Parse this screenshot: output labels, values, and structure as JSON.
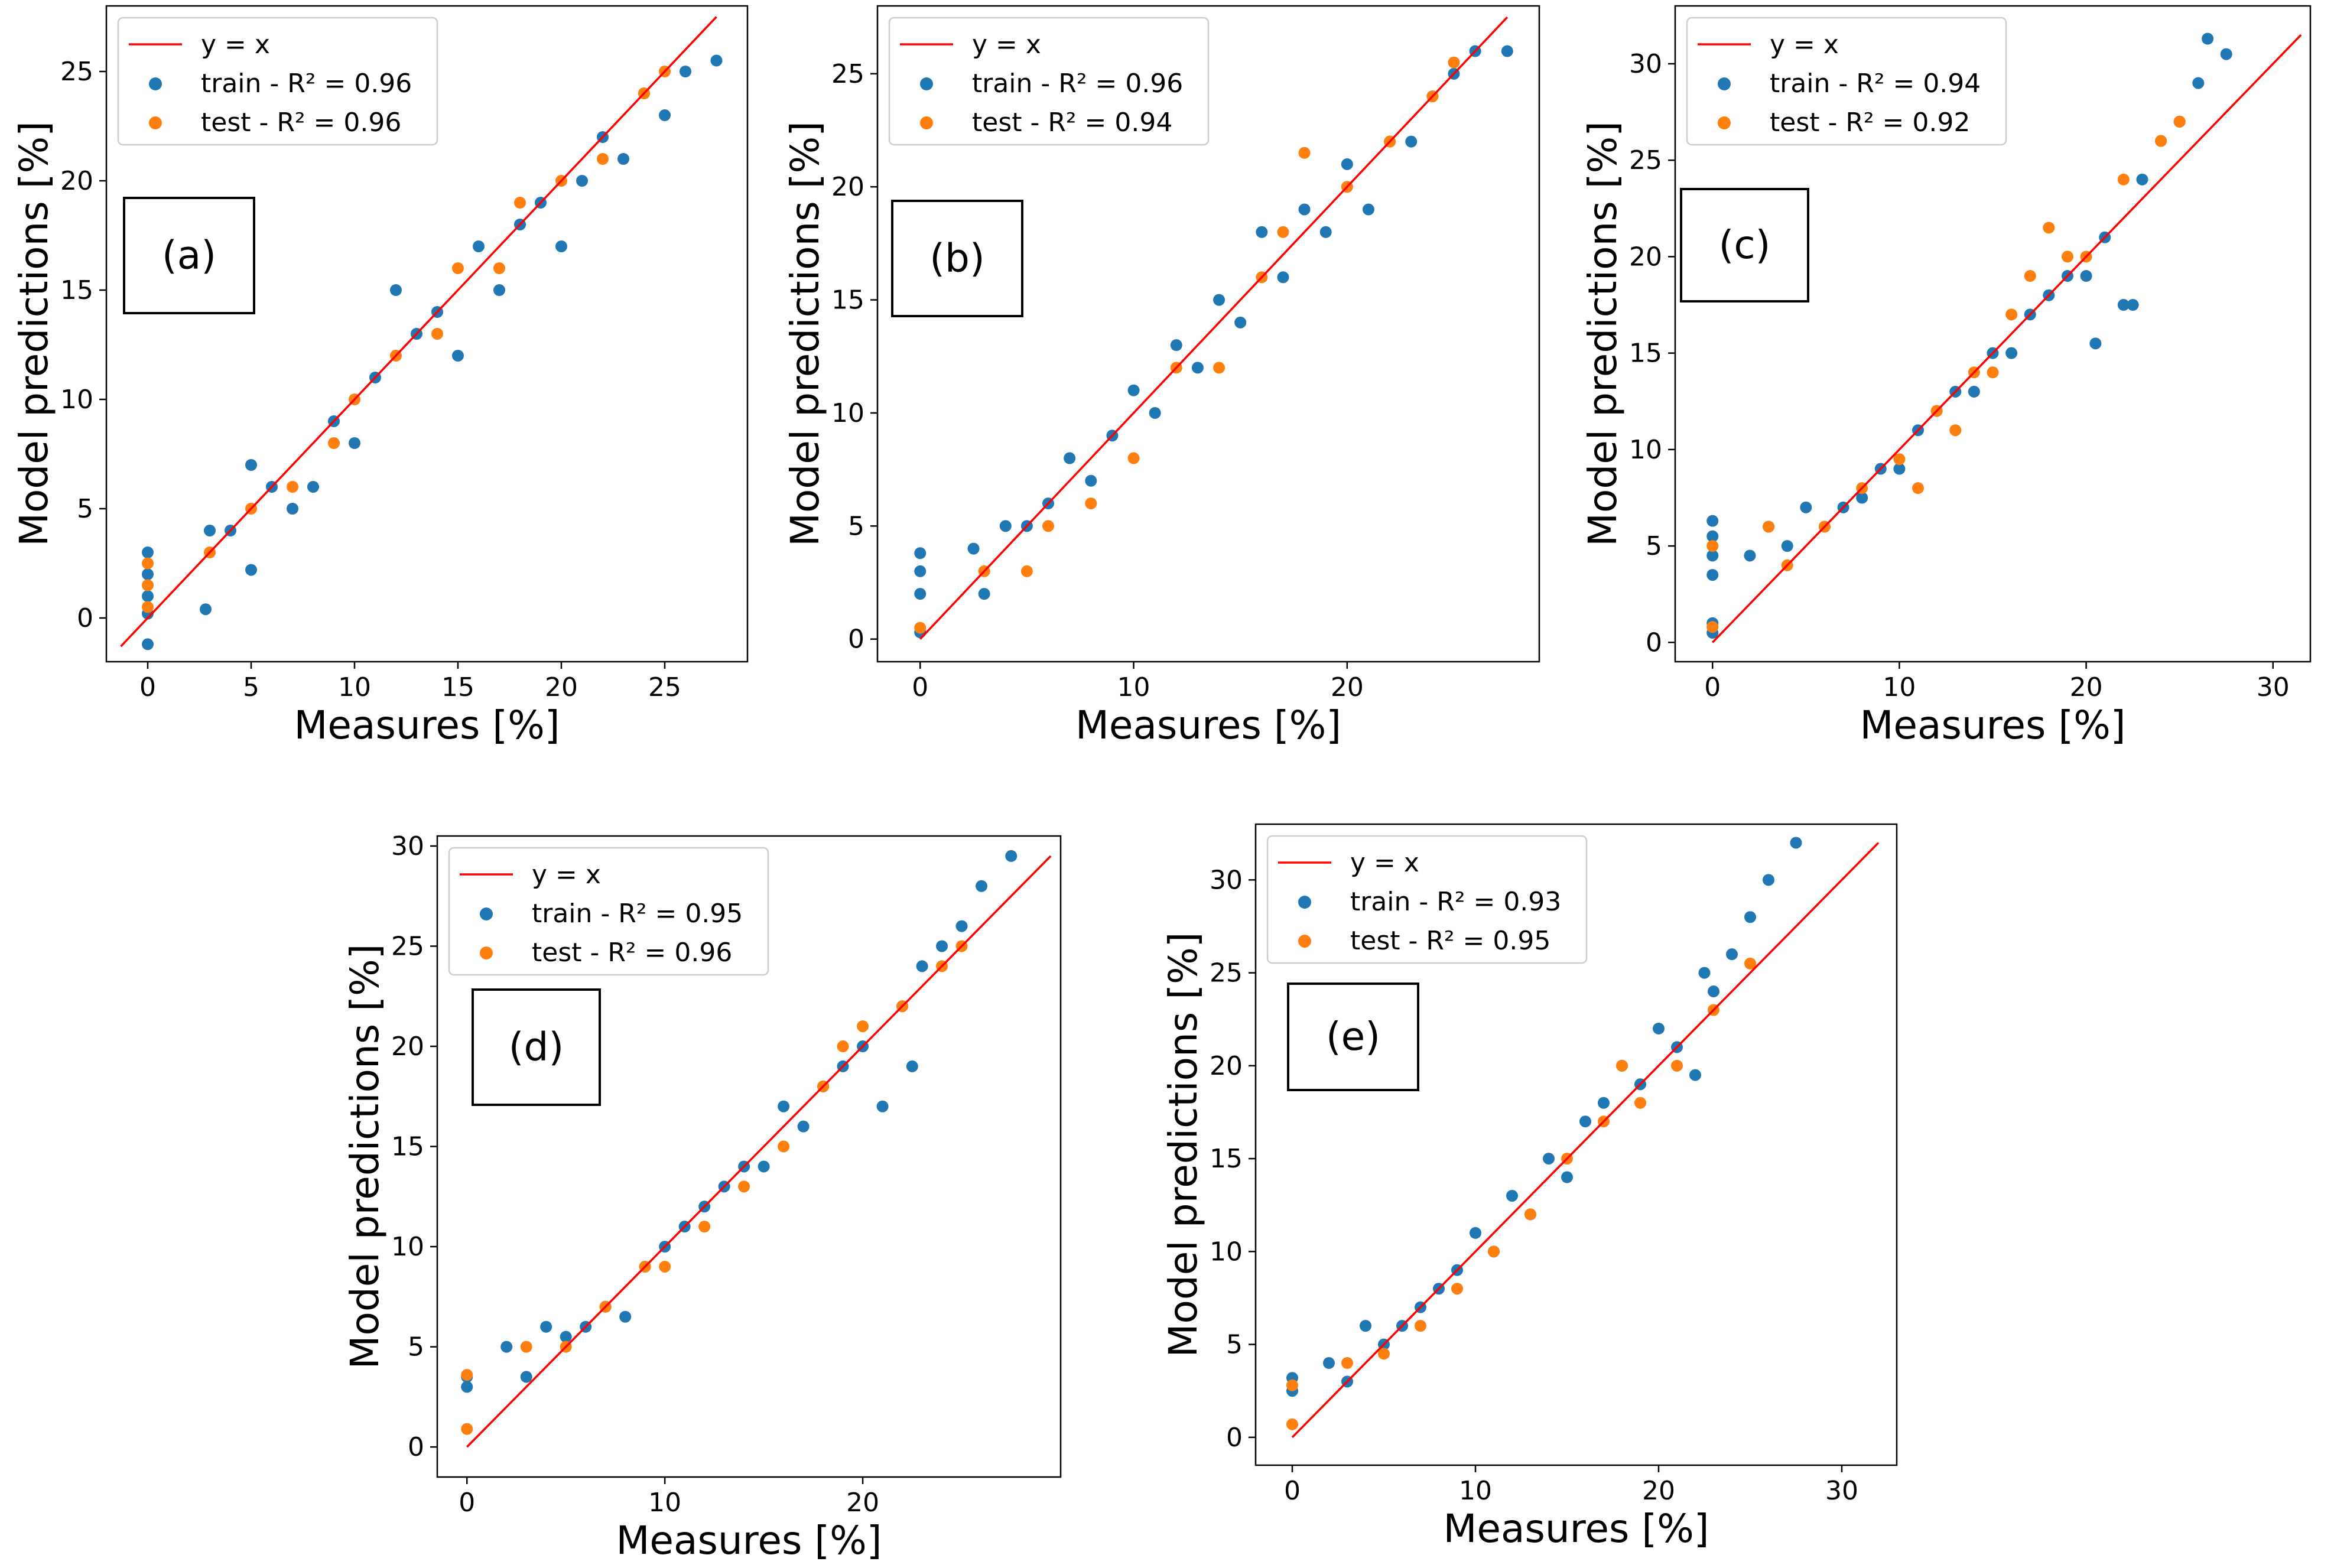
{
  "colors": {
    "train": "#1f77b4",
    "test": "#ff7f0e",
    "identity": "#ff0000"
  },
  "chart_data": [
    {
      "type": "scatter",
      "panel_label": "(a)",
      "xlabel": "Measures [%]",
      "ylabel": "Model predictions [%]",
      "xlim": [
        -2,
        29
      ],
      "ylim": [
        -2,
        28
      ],
      "xticks": [
        0,
        5,
        10,
        15,
        20,
        25
      ],
      "yticks": [
        0,
        5,
        10,
        15,
        20,
        25
      ],
      "legend": [
        "y = x",
        "train - R² = 0.96",
        "test - R² = 0.96"
      ],
      "legend_position": "top-left",
      "train_r2": 0.96,
      "test_r2": 0.96,
      "identity_range": [
        -1.3,
        27.5
      ],
      "series": [
        {
          "name": "train - R² = 0.96",
          "points": [
            [
              0,
              -1.2
            ],
            [
              0,
              0.2
            ],
            [
              0,
              1
            ],
            [
              0,
              2
            ],
            [
              0,
              3
            ],
            [
              2.8,
              0.4
            ],
            [
              3,
              4
            ],
            [
              4,
              4
            ],
            [
              5,
              2.2
            ],
            [
              5,
              7
            ],
            [
              6,
              6
            ],
            [
              7,
              5
            ],
            [
              8,
              6
            ],
            [
              9,
              9
            ],
            [
              10,
              8
            ],
            [
              11,
              11
            ],
            [
              12,
              15
            ],
            [
              13,
              13
            ],
            [
              14,
              14
            ],
            [
              15,
              12
            ],
            [
              16,
              17
            ],
            [
              17,
              15
            ],
            [
              18,
              18
            ],
            [
              19,
              19
            ],
            [
              20,
              17
            ],
            [
              21,
              20
            ],
            [
              22,
              22
            ],
            [
              23,
              21
            ],
            [
              24,
              24
            ],
            [
              25,
              23
            ],
            [
              26,
              25
            ],
            [
              27.5,
              25.5
            ]
          ]
        },
        {
          "name": "test - R² = 0.96",
          "points": [
            [
              0,
              0.5
            ],
            [
              0,
              1.5
            ],
            [
              0,
              2.5
            ],
            [
              3,
              3
            ],
            [
              5,
              5
            ],
            [
              7,
              6
            ],
            [
              9,
              8
            ],
            [
              10,
              10
            ],
            [
              12,
              12
            ],
            [
              14,
              13
            ],
            [
              15,
              16
            ],
            [
              17,
              16
            ],
            [
              18,
              19
            ],
            [
              20,
              20
            ],
            [
              22,
              21
            ],
            [
              24,
              24
            ],
            [
              25,
              25
            ]
          ]
        }
      ]
    },
    {
      "type": "scatter",
      "panel_label": "(b)",
      "xlabel": "Measures [%]",
      "ylabel": "Model predictions [%]",
      "xlim": [
        -2,
        29
      ],
      "ylim": [
        -1,
        28
      ],
      "xticks": [
        0,
        10,
        20
      ],
      "yticks": [
        0,
        5,
        10,
        15,
        20,
        25
      ],
      "legend": [
        "y = x",
        "train - R² = 0.96",
        "test - R² = 0.94"
      ],
      "legend_position": "top-left",
      "train_r2": 0.96,
      "test_r2": 0.94,
      "identity_range": [
        0,
        27.5
      ],
      "series": [
        {
          "name": "train - R² = 0.96",
          "points": [
            [
              0,
              0.3
            ],
            [
              0,
              2
            ],
            [
              0,
              3
            ],
            [
              0,
              3.8
            ],
            [
              2.5,
              4
            ],
            [
              3,
              2
            ],
            [
              4,
              5
            ],
            [
              5,
              5
            ],
            [
              6,
              6
            ],
            [
              7,
              8
            ],
            [
              8,
              7
            ],
            [
              9,
              9
            ],
            [
              10,
              11
            ],
            [
              11,
              10
            ],
            [
              12,
              13
            ],
            [
              13,
              12
            ],
            [
              14,
              15
            ],
            [
              15,
              14
            ],
            [
              16,
              18
            ],
            [
              17,
              16
            ],
            [
              18,
              19
            ],
            [
              19,
              18
            ],
            [
              20,
              21
            ],
            [
              21,
              19
            ],
            [
              22,
              22
            ],
            [
              23,
              22
            ],
            [
              24,
              24
            ],
            [
              25,
              25
            ],
            [
              26,
              26
            ],
            [
              27.5,
              26
            ]
          ]
        },
        {
          "name": "test - R² = 0.94",
          "points": [
            [
              0,
              0.5
            ],
            [
              3,
              3
            ],
            [
              5,
              3
            ],
            [
              6,
              5
            ],
            [
              8,
              6
            ],
            [
              10,
              8
            ],
            [
              12,
              12
            ],
            [
              14,
              12
            ],
            [
              16,
              16
            ],
            [
              17,
              18
            ],
            [
              18,
              21.5
            ],
            [
              20,
              20
            ],
            [
              22,
              22
            ],
            [
              24,
              24
            ],
            [
              25,
              25.5
            ]
          ]
        }
      ]
    },
    {
      "type": "scatter",
      "panel_label": "(c)",
      "xlabel": "Measures [%]",
      "ylabel": "Model predictions [%]",
      "xlim": [
        -2,
        32
      ],
      "ylim": [
        -1,
        33
      ],
      "xticks": [
        0,
        10,
        20,
        30
      ],
      "yticks": [
        0,
        5,
        10,
        15,
        20,
        25,
        30
      ],
      "legend": [
        "y = x",
        "train - R² = 0.94",
        "test - R² = 0.92"
      ],
      "legend_position": "top-left",
      "train_r2": 0.94,
      "test_r2": 0.92,
      "identity_range": [
        0,
        31.5
      ],
      "series": [
        {
          "name": "train - R² = 0.94",
          "points": [
            [
              0,
              0.5
            ],
            [
              0,
              1
            ],
            [
              0,
              3.5
            ],
            [
              0,
              4.5
            ],
            [
              0,
              5.5
            ],
            [
              0,
              6.3
            ],
            [
              2,
              4.5
            ],
            [
              3,
              6
            ],
            [
              4,
              5
            ],
            [
              5,
              7
            ],
            [
              6,
              6
            ],
            [
              7,
              7
            ],
            [
              8,
              7.5
            ],
            [
              9,
              9
            ],
            [
              10,
              9
            ],
            [
              11,
              11
            ],
            [
              12,
              12
            ],
            [
              13,
              13
            ],
            [
              14,
              13
            ],
            [
              15,
              15
            ],
            [
              16,
              15
            ],
            [
              17,
              17
            ],
            [
              18,
              18
            ],
            [
              19,
              19
            ],
            [
              20,
              19
            ],
            [
              20.5,
              15.5
            ],
            [
              21,
              21
            ],
            [
              22,
              17.5
            ],
            [
              22.5,
              17.5
            ],
            [
              23,
              24
            ],
            [
              24,
              26
            ],
            [
              25,
              27
            ],
            [
              26,
              29
            ],
            [
              26.5,
              31.3
            ],
            [
              27.5,
              30.5
            ]
          ]
        },
        {
          "name": "test - R² = 0.92",
          "points": [
            [
              0,
              0.8
            ],
            [
              0,
              5
            ],
            [
              3,
              6
            ],
            [
              4,
              4
            ],
            [
              6,
              6
            ],
            [
              8,
              8
            ],
            [
              10,
              9.5
            ],
            [
              11,
              8
            ],
            [
              12,
              12
            ],
            [
              13,
              11
            ],
            [
              14,
              14
            ],
            [
              15,
              14
            ],
            [
              16,
              17
            ],
            [
              17,
              19
            ],
            [
              18,
              21.5
            ],
            [
              19,
              20
            ],
            [
              20,
              20
            ],
            [
              22,
              24
            ],
            [
              24,
              26
            ],
            [
              25,
              27
            ]
          ]
        }
      ]
    },
    {
      "type": "scatter",
      "panel_label": "(d)",
      "xlabel": "Measures [%]",
      "ylabel": "Model predictions [%]",
      "xlim": [
        -1.5,
        30
      ],
      "ylim": [
        -1.5,
        30.5
      ],
      "xticks": [
        0,
        10,
        20
      ],
      "yticks": [
        0,
        5,
        10,
        15,
        20,
        25,
        30
      ],
      "legend": [
        "y = x",
        "train - R² = 0.95",
        "test - R² = 0.96"
      ],
      "legend_position": "top-left",
      "train_r2": 0.95,
      "test_r2": 0.96,
      "identity_range": [
        0,
        29.5
      ],
      "series": [
        {
          "name": "train - R² = 0.95",
          "points": [
            [
              0,
              3
            ],
            [
              0,
              3.5
            ],
            [
              2,
              5
            ],
            [
              3,
              3.5
            ],
            [
              4,
              6
            ],
            [
              5,
              5.5
            ],
            [
              6,
              6
            ],
            [
              7,
              7
            ],
            [
              8,
              6.5
            ],
            [
              9,
              9
            ],
            [
              10,
              10
            ],
            [
              11,
              11
            ],
            [
              12,
              12
            ],
            [
              13,
              13
            ],
            [
              14,
              14
            ],
            [
              15,
              14
            ],
            [
              16,
              17
            ],
            [
              17,
              16
            ],
            [
              18,
              18
            ],
            [
              19,
              19
            ],
            [
              20,
              20
            ],
            [
              21,
              17
            ],
            [
              22,
              22
            ],
            [
              22.5,
              19
            ],
            [
              23,
              24
            ],
            [
              24,
              25
            ],
            [
              25,
              26
            ],
            [
              26,
              28
            ],
            [
              27.5,
              29.5
            ]
          ]
        },
        {
          "name": "test - R² = 0.96",
          "points": [
            [
              0,
              0.9
            ],
            [
              0,
              3.6
            ],
            [
              3,
              5
            ],
            [
              5,
              5
            ],
            [
              7,
              7
            ],
            [
              9,
              9
            ],
            [
              10,
              9
            ],
            [
              12,
              11
            ],
            [
              14,
              13
            ],
            [
              16,
              15
            ],
            [
              18,
              18
            ],
            [
              19,
              20
            ],
            [
              20,
              21
            ],
            [
              22,
              22
            ],
            [
              24,
              24
            ],
            [
              25,
              25
            ]
          ]
        }
      ]
    },
    {
      "type": "scatter",
      "panel_label": "(e)",
      "xlabel": "Measures [%]",
      "ylabel": "Model predictions [%]",
      "xlim": [
        -2,
        33
      ],
      "ylim": [
        -1.5,
        33
      ],
      "xticks": [
        0,
        10,
        20,
        30
      ],
      "yticks": [
        0,
        5,
        10,
        15,
        20,
        25,
        30
      ],
      "legend": [
        "y = x",
        "train - R² = 0.93",
        "test - R² = 0.95"
      ],
      "legend_position": "top-left",
      "train_r2": 0.93,
      "test_r2": 0.95,
      "identity_range": [
        0,
        32
      ],
      "series": [
        {
          "name": "train - R² = 0.93",
          "points": [
            [
              0,
              2.5
            ],
            [
              0,
              3.2
            ],
            [
              2,
              4
            ],
            [
              3,
              3
            ],
            [
              4,
              6
            ],
            [
              5,
              5
            ],
            [
              6,
              6
            ],
            [
              7,
              7
            ],
            [
              8,
              8
            ],
            [
              9,
              9
            ],
            [
              10,
              11
            ],
            [
              11,
              10
            ],
            [
              12,
              13
            ],
            [
              13,
              12
            ],
            [
              14,
              15
            ],
            [
              15,
              14
            ],
            [
              16,
              17
            ],
            [
              17,
              18
            ],
            [
              18,
              20
            ],
            [
              19,
              19
            ],
            [
              20,
              22
            ],
            [
              21,
              21
            ],
            [
              22,
              19.5
            ],
            [
              22.5,
              25
            ],
            [
              23,
              24
            ],
            [
              24,
              26
            ],
            [
              25,
              28
            ],
            [
              26,
              30
            ],
            [
              27.5,
              32
            ]
          ]
        },
        {
          "name": "test - R² = 0.95",
          "points": [
            [
              0,
              0.7
            ],
            [
              0,
              2.8
            ],
            [
              3,
              4
            ],
            [
              5,
              4.5
            ],
            [
              7,
              6
            ],
            [
              9,
              8
            ],
            [
              11,
              10
            ],
            [
              13,
              12
            ],
            [
              15,
              15
            ],
            [
              17,
              17
            ],
            [
              18,
              20
            ],
            [
              19,
              18
            ],
            [
              21,
              20
            ],
            [
              23,
              23
            ],
            [
              25,
              25.5
            ]
          ]
        }
      ]
    }
  ]
}
